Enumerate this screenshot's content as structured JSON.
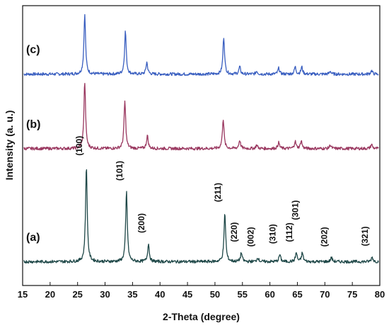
{
  "chart_data": {
    "type": "line",
    "xlabel": "2-Theta (degree)",
    "ylabel": "Intensity (a. u.)",
    "xlim": [
      15,
      80
    ],
    "xticks": [
      15,
      20,
      25,
      30,
      35,
      40,
      45,
      50,
      55,
      60,
      65,
      70,
      75,
      80
    ],
    "yticks_shown": false,
    "grid": false,
    "series": [
      {
        "label": "(c)",
        "color": "#3a5fc0",
        "offset": 3.15,
        "baseline": 0.05,
        "peaks": [
          {
            "x": 26.3,
            "y": 1.0
          },
          {
            "x": 33.7,
            "y": 0.72
          },
          {
            "x": 37.6,
            "y": 0.2
          },
          {
            "x": 51.6,
            "y": 0.62
          },
          {
            "x": 54.5,
            "y": 0.12
          },
          {
            "x": 57.6,
            "y": 0.05
          },
          {
            "x": 61.6,
            "y": 0.1
          },
          {
            "x": 64.6,
            "y": 0.12
          },
          {
            "x": 65.8,
            "y": 0.12
          },
          {
            "x": 71.0,
            "y": 0.05
          },
          {
            "x": 78.5,
            "y": 0.06
          }
        ]
      },
      {
        "label": "(b)",
        "color": "#9a3860",
        "offset": 1.9,
        "baseline": 0.05,
        "peaks": [
          {
            "x": 26.3,
            "y": 1.12
          },
          {
            "x": 33.6,
            "y": 0.8
          },
          {
            "x": 37.7,
            "y": 0.22
          },
          {
            "x": 51.5,
            "y": 0.5
          },
          {
            "x": 54.5,
            "y": 0.14
          },
          {
            "x": 57.6,
            "y": 0.06
          },
          {
            "x": 61.6,
            "y": 0.1
          },
          {
            "x": 64.6,
            "y": 0.12
          },
          {
            "x": 65.7,
            "y": 0.13
          },
          {
            "x": 71.0,
            "y": 0.06
          },
          {
            "x": 78.5,
            "y": 0.07
          }
        ]
      },
      {
        "label": "(a)",
        "color": "#1f4848",
        "offset": 0.0,
        "baseline": 0.05,
        "peaks": [
          {
            "x": 26.6,
            "y": 1.6
          },
          {
            "x": 33.9,
            "y": 1.18
          },
          {
            "x": 37.9,
            "y": 0.3
          },
          {
            "x": 51.8,
            "y": 0.82
          },
          {
            "x": 54.8,
            "y": 0.15
          },
          {
            "x": 57.8,
            "y": 0.07
          },
          {
            "x": 61.8,
            "y": 0.12
          },
          {
            "x": 64.8,
            "y": 0.15
          },
          {
            "x": 65.9,
            "y": 0.15
          },
          {
            "x": 71.2,
            "y": 0.07
          },
          {
            "x": 78.6,
            "y": 0.08
          }
        ]
      }
    ],
    "peak_labels": [
      {
        "text": "(100)",
        "x": 26.6
      },
      {
        "text": "(101)",
        "x": 33.9
      },
      {
        "text": "(200)",
        "x": 37.9
      },
      {
        "text": "(211)",
        "x": 51.8
      },
      {
        "text": "(220)",
        "x": 54.8
      },
      {
        "text": "(002)",
        "x": 57.8
      },
      {
        "text": "(310)",
        "x": 61.8
      },
      {
        "text": "(112)",
        "x": 64.8
      },
      {
        "text": "(301)",
        "x": 65.9
      },
      {
        "text": "(202)",
        "x": 71.2
      },
      {
        "text": "(321)",
        "x": 78.6
      }
    ]
  }
}
